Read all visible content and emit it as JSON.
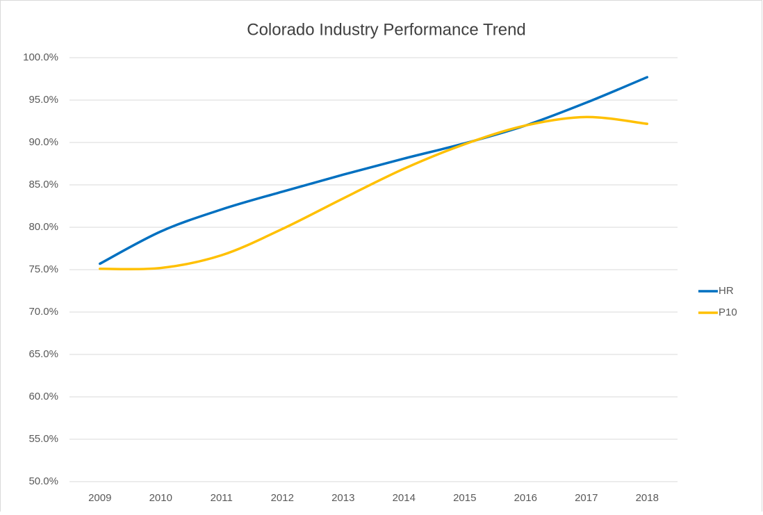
{
  "chart_data": {
    "type": "line",
    "title": "Colorado Industry Performance Trend",
    "categories": [
      "2009",
      "2010",
      "2011",
      "2012",
      "2013",
      "2014",
      "2015",
      "2016",
      "2017",
      "2018"
    ],
    "series": [
      {
        "name": "HR",
        "color": "#0070c0",
        "values": [
          75.7,
          79.5,
          82.1,
          84.2,
          86.2,
          88.1,
          89.9,
          92.0,
          94.7,
          97.7
        ]
      },
      {
        "name": "P10",
        "color": "#ffc000",
        "values": [
          75.1,
          75.2,
          76.7,
          79.8,
          83.4,
          86.9,
          89.8,
          92.0,
          93.0,
          92.2
        ]
      }
    ],
    "ylim": [
      50,
      100
    ],
    "yticks": [
      {
        "value": 50,
        "label": "50.0%"
      },
      {
        "value": 55,
        "label": "55.0%"
      },
      {
        "value": 60,
        "label": "60.0%"
      },
      {
        "value": 65,
        "label": "65.0%"
      },
      {
        "value": 70,
        "label": "70.0%"
      },
      {
        "value": 75,
        "label": "75.0%"
      },
      {
        "value": 80,
        "label": "80.0%"
      },
      {
        "value": 85,
        "label": "85.0%"
      },
      {
        "value": 90,
        "label": "90.0%"
      },
      {
        "value": 95,
        "label": "95.0%"
      },
      {
        "value": 100,
        "label": "100.0%"
      }
    ],
    "grid": true,
    "smooth": true,
    "legend": "right"
  }
}
